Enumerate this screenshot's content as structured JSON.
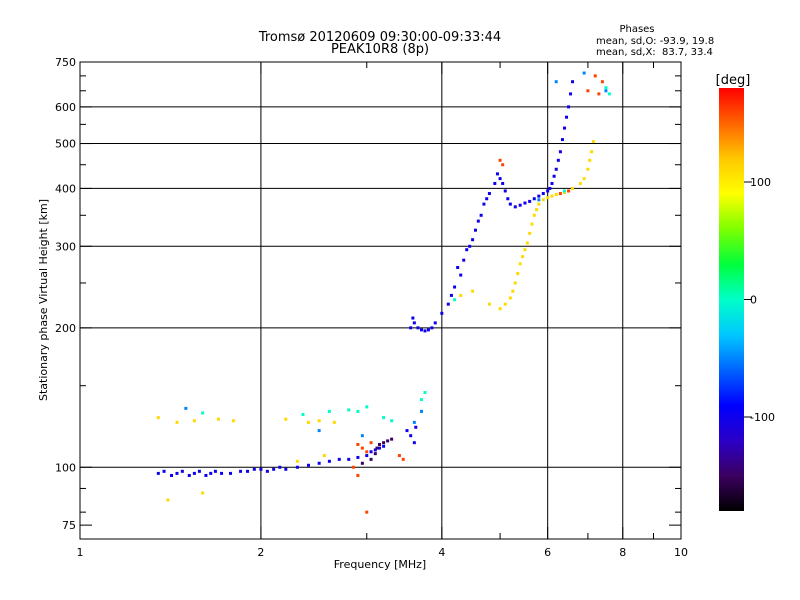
{
  "chart_data": {
    "type": "scatter",
    "title": "Tromsø 20120609 09:30:00-09:33:44",
    "subtitle": "PEAK10R8 (8p)",
    "stats": {
      "heading": "Phases",
      "line_o": "mean, sd,O: -93.9, 19.8",
      "line_x": "mean, sd,X:  83.7, 33.4"
    },
    "xlabel": "Frequency [MHz]",
    "ylabel": "Stationary phase Virtual Height [km]",
    "xscale": "log",
    "yscale": "log",
    "xlim": [
      1,
      10
    ],
    "ylim": [
      70,
      750
    ],
    "x_ticks": [
      1,
      2,
      4,
      6,
      8,
      10
    ],
    "x_minor_ticks": [
      3,
      5,
      7,
      9
    ],
    "y_ticks": [
      75,
      100,
      200,
      300,
      400,
      500,
      600,
      750
    ],
    "y_minor_ticks": [
      80,
      90,
      150,
      250,
      350,
      450,
      550,
      650,
      700
    ],
    "x_grid": [
      2,
      4,
      6,
      8
    ],
    "y_grid": [
      100,
      200,
      300,
      400,
      500,
      600
    ],
    "grid": true,
    "colorbar": {
      "label": "[deg]",
      "range": [
        -180,
        180
      ],
      "ticks": [
        100,
        0,
        -100
      ],
      "colors": [
        "#000000",
        "#3b0060",
        "#2a00c8",
        "#0000ff",
        "#0064ff",
        "#00c8ff",
        "#00ffc8",
        "#00ff3c",
        "#7dff00",
        "#ffff00",
        "#ffc800",
        "#ff6400",
        "#ff0000"
      ]
    },
    "series": [
      {
        "phase_deg": -100,
        "points": [
          [
            1.35,
            97
          ],
          [
            1.38,
            98
          ],
          [
            1.42,
            96
          ],
          [
            1.45,
            97
          ],
          [
            1.48,
            98
          ],
          [
            1.52,
            96
          ],
          [
            1.55,
            97
          ],
          [
            1.58,
            98
          ],
          [
            1.62,
            96
          ],
          [
            1.65,
            97
          ],
          [
            1.68,
            98
          ],
          [
            1.72,
            97
          ],
          [
            1.78,
            97
          ],
          [
            1.85,
            98
          ],
          [
            1.9,
            98
          ],
          [
            1.95,
            99
          ],
          [
            2.0,
            99
          ],
          [
            2.05,
            98
          ],
          [
            2.1,
            99
          ],
          [
            2.15,
            100
          ],
          [
            2.2,
            99
          ],
          [
            2.3,
            100
          ],
          [
            2.4,
            101
          ],
          [
            2.5,
            102
          ],
          [
            2.6,
            103
          ],
          [
            2.7,
            104
          ],
          [
            2.8,
            104
          ],
          [
            2.9,
            105
          ],
          [
            3.0,
            106
          ],
          [
            3.05,
            108
          ],
          [
            3.1,
            109
          ],
          [
            3.15,
            110
          ],
          [
            3.2,
            111
          ],
          [
            3.5,
            120
          ],
          [
            3.55,
            117
          ],
          [
            3.6,
            113
          ],
          [
            3.62,
            122
          ],
          [
            3.55,
            200
          ],
          [
            3.58,
            210
          ],
          [
            3.6,
            205
          ],
          [
            3.65,
            200
          ],
          [
            3.7,
            198
          ],
          [
            3.75,
            197
          ],
          [
            3.8,
            198
          ],
          [
            3.85,
            200
          ],
          [
            3.9,
            205
          ],
          [
            4.0,
            215
          ],
          [
            4.1,
            225
          ],
          [
            4.15,
            235
          ],
          [
            4.2,
            245
          ],
          [
            4.3,
            260
          ],
          [
            4.35,
            280
          ],
          [
            4.4,
            295
          ],
          [
            4.5,
            310
          ],
          [
            4.55,
            325
          ],
          [
            4.6,
            340
          ],
          [
            4.65,
            350
          ],
          [
            4.7,
            370
          ],
          [
            4.8,
            390
          ],
          [
            4.9,
            410
          ],
          [
            5.0,
            420
          ],
          [
            5.05,
            410
          ],
          [
            5.1,
            395
          ],
          [
            5.15,
            380
          ],
          [
            5.2,
            370
          ],
          [
            5.3,
            365
          ],
          [
            5.4,
            368
          ],
          [
            5.5,
            372
          ],
          [
            5.6,
            375
          ],
          [
            5.7,
            380
          ],
          [
            5.8,
            385
          ],
          [
            5.9,
            390
          ],
          [
            6.0,
            395
          ],
          [
            6.05,
            400
          ],
          [
            6.1,
            410
          ],
          [
            6.15,
            425
          ],
          [
            6.2,
            440
          ],
          [
            6.25,
            460
          ],
          [
            6.3,
            480
          ],
          [
            6.35,
            510
          ],
          [
            6.4,
            540
          ],
          [
            6.45,
            570
          ],
          [
            6.5,
            600
          ],
          [
            6.55,
            640
          ],
          [
            6.6,
            680
          ],
          [
            4.25,
            270
          ],
          [
            4.45,
            300
          ],
          [
            4.75,
            380
          ],
          [
            4.95,
            430
          ]
        ]
      },
      {
        "phase_deg": -150,
        "points": [
          [
            3.1,
            107
          ],
          [
            3.15,
            112
          ],
          [
            3.2,
            113
          ],
          [
            3.25,
            114
          ],
          [
            3.3,
            115
          ],
          [
            3.05,
            104
          ],
          [
            3.12,
            110
          ],
          [
            2.95,
            102
          ]
        ]
      },
      {
        "phase_deg": 110,
        "points": [
          [
            1.35,
            128
          ],
          [
            1.45,
            125
          ],
          [
            1.55,
            126
          ],
          [
            1.7,
            127
          ],
          [
            1.8,
            126
          ],
          [
            2.2,
            127
          ],
          [
            2.4,
            125
          ],
          [
            2.5,
            126
          ],
          [
            2.65,
            125
          ],
          [
            1.4,
            85
          ],
          [
            1.6,
            88
          ],
          [
            2.3,
            103
          ],
          [
            2.55,
            106
          ],
          [
            5.0,
            220
          ],
          [
            5.1,
            225
          ],
          [
            5.2,
            232
          ],
          [
            5.25,
            240
          ],
          [
            5.3,
            250
          ],
          [
            5.35,
            262
          ],
          [
            5.4,
            275
          ],
          [
            5.45,
            285
          ],
          [
            5.5,
            295
          ],
          [
            5.55,
            305
          ],
          [
            5.6,
            320
          ],
          [
            5.65,
            335
          ],
          [
            5.7,
            350
          ],
          [
            5.75,
            360
          ],
          [
            5.8,
            370
          ],
          [
            5.9,
            378
          ],
          [
            6.0,
            382
          ],
          [
            6.1,
            385
          ],
          [
            6.2,
            388
          ],
          [
            6.4,
            392
          ],
          [
            6.6,
            400
          ],
          [
            6.8,
            410
          ],
          [
            6.9,
            420
          ],
          [
            7.0,
            440
          ],
          [
            7.05,
            460
          ],
          [
            7.1,
            480
          ],
          [
            7.15,
            505
          ],
          [
            4.3,
            235
          ],
          [
            4.5,
            240
          ],
          [
            4.8,
            225
          ]
        ]
      },
      {
        "phase_deg": 160,
        "points": [
          [
            2.9,
            112
          ],
          [
            2.95,
            110
          ],
          [
            3.0,
            108
          ],
          [
            3.05,
            113
          ],
          [
            3.4,
            106
          ],
          [
            3.45,
            104
          ],
          [
            5.0,
            460
          ],
          [
            5.05,
            450
          ],
          [
            6.3,
            390
          ],
          [
            6.5,
            395
          ],
          [
            7.0,
            650
          ],
          [
            7.2,
            700
          ],
          [
            7.4,
            680
          ],
          [
            7.3,
            640
          ],
          [
            2.85,
            100
          ],
          [
            2.9,
            96
          ],
          [
            3.0,
            80
          ]
        ]
      },
      {
        "phase_deg": 0,
        "points": [
          [
            2.35,
            130
          ],
          [
            2.6,
            132
          ],
          [
            2.8,
            133
          ],
          [
            2.9,
            132
          ],
          [
            3.0,
            135
          ],
          [
            3.2,
            128
          ],
          [
            3.3,
            126
          ],
          [
            1.6,
            131
          ],
          [
            3.7,
            140
          ],
          [
            3.75,
            145
          ],
          [
            4.2,
            230
          ],
          [
            6.4,
            395
          ],
          [
            7.5,
            660
          ],
          [
            7.6,
            640
          ]
        ]
      },
      {
        "phase_deg": -50,
        "points": [
          [
            1.5,
            134
          ],
          [
            2.5,
            120
          ],
          [
            3.6,
            125
          ],
          [
            3.7,
            132
          ],
          [
            5.8,
            378
          ],
          [
            6.2,
            680
          ],
          [
            6.9,
            710
          ],
          [
            7.5,
            650
          ],
          [
            2.95,
            117
          ]
        ]
      }
    ]
  }
}
